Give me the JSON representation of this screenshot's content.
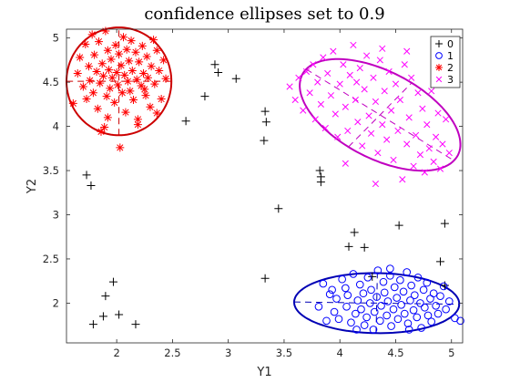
{
  "chart_data": {
    "type": "scatter",
    "title": "confidence ellipses set to 0.9",
    "xlabel": "Y1",
    "ylabel": "Y2",
    "xlim": [
      1.55,
      5.1
    ],
    "ylim": [
      1.55,
      5.1
    ],
    "xticks": [
      "2",
      "2.5",
      "3",
      "3.5",
      "4",
      "4.5",
      "5"
    ],
    "yticks": [
      "2",
      "2.5",
      "3",
      "3.5",
      "4",
      "4.5",
      "5"
    ],
    "xtick_values": [
      2,
      2.5,
      3,
      3.5,
      4,
      4.5,
      5
    ],
    "ytick_values": [
      2,
      2.5,
      3,
      3.5,
      4,
      4.5,
      5
    ],
    "grid": false,
    "legend_position": "top-right",
    "series": [
      {
        "name": "0",
        "marker": "plus",
        "color": "#000000",
        "points": [
          [
            1.79,
            1.76
          ],
          [
            1.88,
            1.85
          ],
          [
            1.9,
            2.08
          ],
          [
            1.97,
            2.24
          ],
          [
            2.02,
            1.87
          ],
          [
            2.17,
            1.76
          ],
          [
            1.73,
            3.45
          ],
          [
            1.77,
            3.33
          ],
          [
            2.62,
            4.06
          ],
          [
            2.79,
            4.34
          ],
          [
            2.88,
            4.7
          ],
          [
            2.91,
            4.61
          ],
          [
            3.07,
            4.54
          ],
          [
            3.33,
            4.17
          ],
          [
            3.34,
            4.05
          ],
          [
            3.32,
            3.84
          ],
          [
            3.45,
            3.07
          ],
          [
            3.33,
            2.28
          ],
          [
            3.82,
            3.5
          ],
          [
            3.83,
            3.43
          ],
          [
            3.83,
            3.37
          ],
          [
            4.08,
            2.64
          ],
          [
            4.13,
            2.8
          ],
          [
            4.22,
            2.63
          ],
          [
            4.29,
            2.3
          ],
          [
            4.53,
            2.88
          ],
          [
            4.9,
            2.47
          ],
          [
            4.94,
            2.9
          ],
          [
            4.94,
            2.2
          ]
        ]
      },
      {
        "name": "1",
        "marker": "circle",
        "color": "#0000ff",
        "points": [
          [
            3.85,
            2.22
          ],
          [
            3.91,
            2.1
          ],
          [
            3.95,
            1.9
          ],
          [
            3.97,
            2.05
          ],
          [
            3.99,
            1.82
          ],
          [
            4.02,
            2.27
          ],
          [
            4.05,
            2.17
          ],
          [
            4.06,
            1.96
          ],
          [
            4.07,
            2.09
          ],
          [
            4.1,
            1.78
          ],
          [
            4.12,
            2.33
          ],
          [
            4.14,
            1.88
          ],
          [
            4.16,
            2.03
          ],
          [
            4.18,
            2.21
          ],
          [
            4.19,
            1.93
          ],
          [
            4.21,
            2.11
          ],
          [
            4.22,
            1.75
          ],
          [
            4.24,
            1.84
          ],
          [
            4.25,
            2.29
          ],
          [
            4.27,
            2.0
          ],
          [
            4.28,
            2.15
          ],
          [
            4.3,
            1.7
          ],
          [
            4.31,
            1.9
          ],
          [
            4.33,
            2.07
          ],
          [
            4.34,
            2.37
          ],
          [
            4.36,
            1.8
          ],
          [
            4.37,
            1.97
          ],
          [
            4.39,
            2.24
          ],
          [
            4.4,
            2.12
          ],
          [
            4.42,
            1.86
          ],
          [
            4.43,
            2.02
          ],
          [
            4.45,
            2.31
          ],
          [
            4.46,
            1.74
          ],
          [
            4.48,
            1.93
          ],
          [
            4.49,
            2.18
          ],
          [
            4.51,
            2.06
          ],
          [
            4.52,
            1.82
          ],
          [
            4.54,
            2.26
          ],
          [
            4.55,
            1.98
          ],
          [
            4.57,
            2.13
          ],
          [
            4.58,
            1.88
          ],
          [
            4.6,
            2.35
          ],
          [
            4.61,
            1.77
          ],
          [
            4.63,
            2.03
          ],
          [
            4.64,
            2.2
          ],
          [
            4.66,
            1.92
          ],
          [
            4.67,
            2.09
          ],
          [
            4.69,
            1.84
          ],
          [
            4.7,
            2.29
          ],
          [
            4.72,
            2.0
          ],
          [
            4.73,
            1.72
          ],
          [
            4.75,
            2.15
          ],
          [
            4.76,
            1.95
          ],
          [
            4.78,
            2.23
          ],
          [
            4.79,
            1.86
          ],
          [
            4.81,
            2.05
          ],
          [
            4.82,
            1.79
          ],
          [
            4.84,
            2.11
          ],
          [
            4.86,
            1.97
          ],
          [
            4.88,
            1.88
          ],
          [
            4.9,
            2.08
          ],
          [
            4.93,
            2.19
          ],
          [
            4.95,
            1.93
          ],
          [
            4.98,
            2.02
          ],
          [
            5.03,
            1.83
          ],
          [
            5.08,
            1.8
          ],
          [
            3.81,
            1.96
          ],
          [
            3.88,
            1.8
          ],
          [
            3.93,
            2.15
          ],
          [
            4.15,
            1.7
          ],
          [
            4.45,
            2.39
          ],
          [
            4.62,
            1.7
          ]
        ]
      },
      {
        "name": "2",
        "marker": "star",
        "color": "#ff0000",
        "points": [
          [
            1.61,
            4.26
          ],
          [
            1.65,
            4.6
          ],
          [
            1.67,
            4.78
          ],
          [
            1.7,
            4.45
          ],
          [
            1.72,
            4.93
          ],
          [
            1.73,
            4.31
          ],
          [
            1.75,
            4.68
          ],
          [
            1.76,
            4.52
          ],
          [
            1.78,
            5.04
          ],
          [
            1.79,
            4.38
          ],
          [
            1.8,
            4.81
          ],
          [
            1.82,
            4.62
          ],
          [
            1.83,
            4.2
          ],
          [
            1.84,
            4.96
          ],
          [
            1.85,
            4.49
          ],
          [
            1.87,
            4.71
          ],
          [
            1.88,
            4.57
          ],
          [
            1.89,
            3.99
          ],
          [
            1.9,
            5.08
          ],
          [
            1.91,
            4.34
          ],
          [
            1.92,
            4.86
          ],
          [
            1.93,
            4.64
          ],
          [
            1.94,
            4.43
          ],
          [
            1.95,
            4.76
          ],
          [
            1.96,
            4.55
          ],
          [
            1.97,
            5.12
          ],
          [
            1.98,
            4.27
          ],
          [
            1.99,
            4.92
          ],
          [
            2.0,
            4.61
          ],
          [
            2.01,
            4.47
          ],
          [
            2.02,
            4.82
          ],
          [
            2.03,
            3.76
          ],
          [
            2.04,
            4.69
          ],
          [
            2.05,
            4.38
          ],
          [
            2.06,
            5.01
          ],
          [
            2.07,
            4.58
          ],
          [
            2.08,
            4.16
          ],
          [
            2.09,
            4.87
          ],
          [
            2.1,
            4.51
          ],
          [
            2.11,
            4.74
          ],
          [
            2.12,
            4.4
          ],
          [
            2.13,
            4.97
          ],
          [
            2.14,
            4.63
          ],
          [
            2.15,
            4.3
          ],
          [
            2.17,
            4.84
          ],
          [
            2.18,
            4.53
          ],
          [
            2.19,
            4.08
          ],
          [
            2.2,
            4.73
          ],
          [
            2.22,
            4.46
          ],
          [
            2.23,
            4.91
          ],
          [
            2.24,
            4.6
          ],
          [
            2.26,
            4.35
          ],
          [
            2.27,
            4.79
          ],
          [
            2.28,
            4.55
          ],
          [
            2.3,
            4.22
          ],
          [
            2.31,
            4.68
          ],
          [
            2.33,
            4.98
          ],
          [
            2.34,
            4.48
          ],
          [
            2.36,
            4.86
          ],
          [
            2.38,
            4.63
          ],
          [
            2.4,
            4.31
          ],
          [
            2.42,
            4.75
          ],
          [
            2.44,
            4.54
          ],
          [
            2.19,
            4.02
          ],
          [
            1.92,
            4.1
          ],
          [
            1.86,
            3.94
          ],
          [
            2.36,
            4.15
          ],
          [
            2.25,
            4.42
          ]
        ]
      },
      {
        "name": "3",
        "marker": "x",
        "color": "#ff00ff",
        "points": [
          [
            3.55,
            4.45
          ],
          [
            3.6,
            4.3
          ],
          [
            3.63,
            4.55
          ],
          [
            3.67,
            4.18
          ],
          [
            3.7,
            4.62
          ],
          [
            3.73,
            4.38
          ],
          [
            3.76,
            4.7
          ],
          [
            3.78,
            4.08
          ],
          [
            3.8,
            4.5
          ],
          [
            3.83,
            4.25
          ],
          [
            3.85,
            4.78
          ],
          [
            3.87,
            3.98
          ],
          [
            3.89,
            4.6
          ],
          [
            3.92,
            4.35
          ],
          [
            3.94,
            4.85
          ],
          [
            3.96,
            4.14
          ],
          [
            3.98,
            3.88
          ],
          [
            4.0,
            4.48
          ],
          [
            4.03,
            4.7
          ],
          [
            4.05,
            4.22
          ],
          [
            4.07,
            3.95
          ],
          [
            4.09,
            4.58
          ],
          [
            4.12,
            4.92
          ],
          [
            4.14,
            4.3
          ],
          [
            4.16,
            4.05
          ],
          [
            4.18,
            4.66
          ],
          [
            4.2,
            3.78
          ],
          [
            4.22,
            4.42
          ],
          [
            4.24,
            4.8
          ],
          [
            4.26,
            4.12
          ],
          [
            4.28,
            3.92
          ],
          [
            4.3,
            4.55
          ],
          [
            4.32,
            4.28
          ],
          [
            4.34,
            3.7
          ],
          [
            4.36,
            4.75
          ],
          [
            4.38,
            4.02
          ],
          [
            4.4,
            4.4
          ],
          [
            4.42,
            3.85
          ],
          [
            4.44,
            4.62
          ],
          [
            4.46,
            4.18
          ],
          [
            4.48,
            3.62
          ],
          [
            4.5,
            4.48
          ],
          [
            4.52,
            3.95
          ],
          [
            4.54,
            4.3
          ],
          [
            4.56,
            3.4
          ],
          [
            4.58,
            4.7
          ],
          [
            4.6,
            3.8
          ],
          [
            4.62,
            4.1
          ],
          [
            4.64,
            4.55
          ],
          [
            4.66,
            3.55
          ],
          [
            4.68,
            3.9
          ],
          [
            4.7,
            4.38
          ],
          [
            4.72,
            3.68
          ],
          [
            4.74,
            4.2
          ],
          [
            4.76,
            3.48
          ],
          [
            4.78,
            4.02
          ],
          [
            4.8,
            3.75
          ],
          [
            4.82,
            4.4
          ],
          [
            4.84,
            3.6
          ],
          [
            4.86,
            3.88
          ],
          [
            4.88,
            4.15
          ],
          [
            4.9,
            3.52
          ],
          [
            4.92,
            3.8
          ],
          [
            4.95,
            4.08
          ],
          [
            4.98,
            3.7
          ],
          [
            4.32,
            3.35
          ],
          [
            4.05,
            3.58
          ],
          [
            4.6,
            4.85
          ],
          [
            4.15,
            4.5
          ],
          [
            4.38,
            4.88
          ]
        ]
      }
    ],
    "ellipses": [
      {
        "series": "2",
        "color": "#cc0000",
        "cx": 2.02,
        "cy": 4.51,
        "semi_major": 0.61,
        "semi_minor": 0.47,
        "angle_deg": 90
      },
      {
        "series": "3",
        "color": "#c000c0",
        "cx": 4.36,
        "cy": 4.13,
        "semi_major": 0.84,
        "semi_minor": 0.46,
        "angle_deg": -38
      },
      {
        "series": "1",
        "color": "#0000b4",
        "cx": 4.33,
        "cy": 2.0,
        "semi_major": 0.74,
        "semi_minor": 0.34,
        "angle_deg": -1
      }
    ]
  }
}
